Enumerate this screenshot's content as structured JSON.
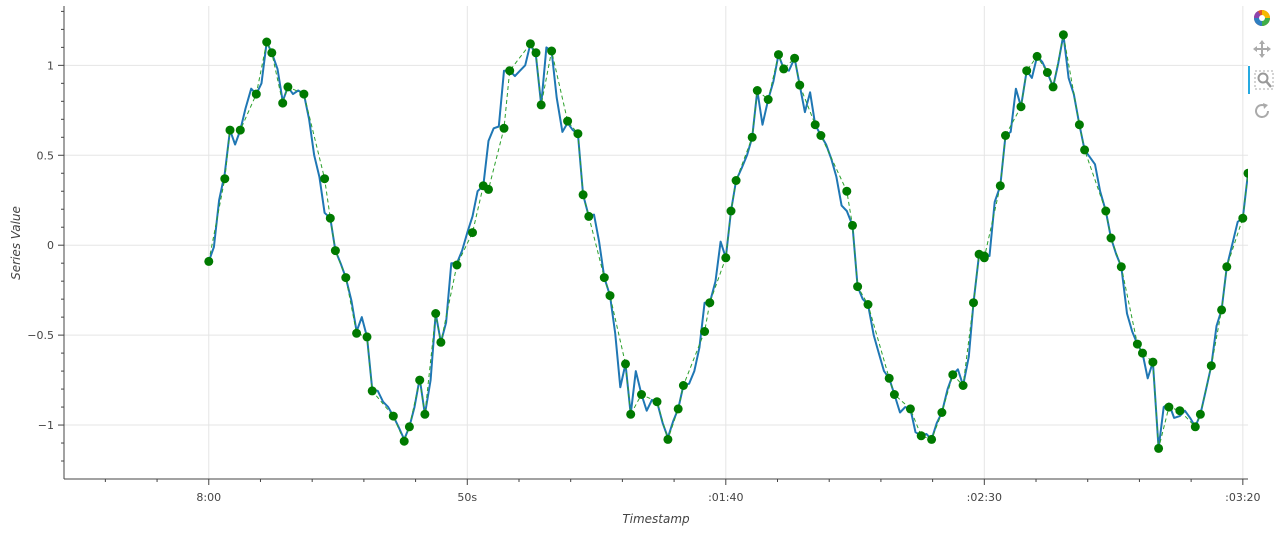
{
  "chart_data": {
    "type": "line",
    "xlabel": "Timestamp",
    "ylabel": "Series Value",
    "x_tick_labels": [
      "8:00",
      "50s",
      ":01:40",
      ":02:30",
      ":03:20"
    ],
    "x_ticks_seconds": [
      0,
      50,
      100,
      150,
      200
    ],
    "x_range_seconds": [
      -28,
      201
    ],
    "y_ticks": [
      -1,
      -0.5,
      0,
      0.5,
      1
    ],
    "y_tick_labels": [
      "−1",
      "−0.5",
      "0",
      "0.5",
      "1"
    ],
    "y_range": [
      -1.3,
      1.33
    ],
    "grid": true,
    "legend": "none",
    "colors": {
      "noisy_line": "#1f77b4",
      "sampled_line": "#2ca02c",
      "markers": "#007a00"
    },
    "sampled_points": [
      [
        0.0,
        -0.09
      ],
      [
        3.1,
        0.37
      ],
      [
        4.1,
        0.64
      ],
      [
        6.1,
        0.64
      ],
      [
        9.2,
        0.84
      ],
      [
        11.2,
        1.13
      ],
      [
        12.2,
        1.07
      ],
      [
        14.3,
        0.79
      ],
      [
        15.3,
        0.88
      ],
      [
        18.4,
        0.84
      ],
      [
        22.4,
        0.37
      ],
      [
        23.5,
        0.15
      ],
      [
        24.5,
        -0.03
      ],
      [
        26.5,
        -0.18
      ],
      [
        28.6,
        -0.49
      ],
      [
        30.6,
        -0.51
      ],
      [
        31.6,
        -0.81
      ],
      [
        35.7,
        -0.95
      ],
      [
        37.8,
        -1.09
      ],
      [
        38.8,
        -1.01
      ],
      [
        40.8,
        -0.75
      ],
      [
        41.8,
        -0.94
      ],
      [
        43.9,
        -0.38
      ],
      [
        44.9,
        -0.54
      ],
      [
        48.0,
        -0.11
      ],
      [
        51.0,
        0.07
      ],
      [
        53.1,
        0.33
      ],
      [
        54.1,
        0.31
      ],
      [
        57.1,
        0.65
      ],
      [
        58.2,
        0.97
      ],
      [
        62.2,
        1.12
      ],
      [
        63.3,
        1.07
      ],
      [
        64.3,
        0.78
      ],
      [
        66.3,
        1.08
      ],
      [
        69.4,
        0.69
      ],
      [
        71.4,
        0.62
      ],
      [
        72.4,
        0.28
      ],
      [
        73.5,
        0.16
      ],
      [
        76.5,
        -0.18
      ],
      [
        77.6,
        -0.28
      ],
      [
        80.6,
        -0.66
      ],
      [
        81.6,
        -0.94
      ],
      [
        83.7,
        -0.83
      ],
      [
        86.7,
        -0.87
      ],
      [
        88.8,
        -1.08
      ],
      [
        90.8,
        -0.91
      ],
      [
        91.8,
        -0.78
      ],
      [
        95.9,
        -0.48
      ],
      [
        96.9,
        -0.32
      ],
      [
        100.0,
        -0.07
      ],
      [
        101.0,
        0.19
      ],
      [
        102.0,
        0.36
      ],
      [
        105.1,
        0.6
      ],
      [
        106.1,
        0.86
      ],
      [
        108.2,
        0.81
      ],
      [
        110.2,
        1.06
      ],
      [
        111.2,
        0.98
      ],
      [
        113.3,
        1.04
      ],
      [
        114.3,
        0.89
      ],
      [
        117.3,
        0.67
      ],
      [
        118.4,
        0.61
      ],
      [
        123.4,
        0.3
      ],
      [
        124.5,
        0.11
      ],
      [
        125.5,
        -0.23
      ],
      [
        127.5,
        -0.33
      ],
      [
        131.6,
        -0.74
      ],
      [
        132.6,
        -0.83
      ],
      [
        135.7,
        -0.91
      ],
      [
        137.8,
        -1.06
      ],
      [
        139.8,
        -1.08
      ],
      [
        141.8,
        -0.93
      ],
      [
        143.9,
        -0.72
      ],
      [
        145.9,
        -0.78
      ],
      [
        147.9,
        -0.32
      ],
      [
        149.0,
        -0.05
      ],
      [
        150.0,
        -0.06
      ],
      [
        150.0,
        -0.07
      ],
      [
        153.1,
        0.33
      ],
      [
        154.1,
        0.61
      ],
      [
        157.1,
        0.77
      ],
      [
        158.2,
        0.97
      ],
      [
        160.2,
        1.05
      ],
      [
        162.2,
        0.96
      ],
      [
        163.3,
        0.88
      ],
      [
        165.3,
        1.17
      ],
      [
        168.4,
        0.67
      ],
      [
        169.4,
        0.53
      ],
      [
        173.5,
        0.19
      ],
      [
        174.5,
        0.04
      ],
      [
        176.5,
        -0.12
      ],
      [
        179.6,
        -0.55
      ],
      [
        180.6,
        -0.6
      ],
      [
        182.6,
        -0.65
      ],
      [
        183.7,
        -1.13
      ],
      [
        185.7,
        -0.9
      ],
      [
        187.8,
        -0.92
      ],
      [
        190.8,
        -1.01
      ],
      [
        191.8,
        -0.94
      ],
      [
        193.9,
        -0.67
      ],
      [
        195.9,
        -0.36
      ],
      [
        196.9,
        -0.12
      ],
      [
        200.0,
        0.15
      ],
      [
        201.0,
        0.4
      ]
    ],
    "noisy_series_points": [
      [
        0.0,
        -0.09
      ],
      [
        1.0,
        -0.01
      ],
      [
        2.0,
        0.25
      ],
      [
        3.1,
        0.4
      ],
      [
        4.1,
        0.64
      ],
      [
        5.1,
        0.56
      ],
      [
        6.1,
        0.64
      ],
      [
        7.1,
        0.76
      ],
      [
        8.2,
        0.87
      ],
      [
        9.2,
        0.84
      ],
      [
        10.2,
        0.9
      ],
      [
        11.2,
        1.13
      ],
      [
        12.2,
        1.07
      ],
      [
        13.3,
        0.98
      ],
      [
        14.3,
        0.8
      ],
      [
        15.3,
        0.88
      ],
      [
        16.3,
        0.84
      ],
      [
        17.3,
        0.86
      ],
      [
        18.4,
        0.84
      ],
      [
        19.4,
        0.7
      ],
      [
        20.4,
        0.5
      ],
      [
        21.4,
        0.38
      ],
      [
        22.4,
        0.18
      ],
      [
        23.5,
        0.15
      ],
      [
        24.5,
        -0.03
      ],
      [
        25.5,
        -0.1
      ],
      [
        26.5,
        -0.18
      ],
      [
        27.6,
        -0.31
      ],
      [
        28.6,
        -0.48
      ],
      [
        29.6,
        -0.4
      ],
      [
        30.6,
        -0.51
      ],
      [
        31.6,
        -0.8
      ],
      [
        32.7,
        -0.81
      ],
      [
        33.7,
        -0.87
      ],
      [
        34.7,
        -0.9
      ],
      [
        35.7,
        -0.95
      ],
      [
        36.7,
        -1.01
      ],
      [
        37.8,
        -1.08
      ],
      [
        38.8,
        -1.01
      ],
      [
        39.8,
        -0.9
      ],
      [
        40.8,
        -0.74
      ],
      [
        41.8,
        -0.94
      ],
      [
        42.9,
        -0.75
      ],
      [
        43.9,
        -0.38
      ],
      [
        44.9,
        -0.54
      ],
      [
        45.9,
        -0.43
      ],
      [
        46.9,
        -0.1
      ],
      [
        48.0,
        -0.1
      ],
      [
        49.0,
        -0.03
      ],
      [
        50.0,
        0.07
      ],
      [
        51.0,
        0.16
      ],
      [
        52.0,
        0.3
      ],
      [
        53.1,
        0.33
      ],
      [
        54.1,
        0.58
      ],
      [
        55.1,
        0.65
      ],
      [
        56.1,
        0.66
      ],
      [
        57.1,
        0.97
      ],
      [
        58.2,
        0.97
      ],
      [
        59.2,
        0.94
      ],
      [
        60.2,
        0.97
      ],
      [
        61.2,
        1.0
      ],
      [
        62.2,
        1.12
      ],
      [
        63.3,
        1.05
      ],
      [
        64.3,
        0.78
      ],
      [
        65.3,
        1.1
      ],
      [
        66.3,
        1.08
      ],
      [
        67.3,
        0.82
      ],
      [
        68.4,
        0.63
      ],
      [
        69.4,
        0.68
      ],
      [
        70.4,
        0.64
      ],
      [
        71.4,
        0.62
      ],
      [
        72.4,
        0.28
      ],
      [
        73.5,
        0.16
      ],
      [
        74.5,
        0.17
      ],
      [
        75.5,
        0.02
      ],
      [
        76.5,
        -0.18
      ],
      [
        77.6,
        -0.28
      ],
      [
        78.6,
        -0.49
      ],
      [
        79.6,
        -0.79
      ],
      [
        80.6,
        -0.66
      ],
      [
        81.6,
        -0.94
      ],
      [
        82.6,
        -0.7
      ],
      [
        83.7,
        -0.83
      ],
      [
        84.7,
        -0.92
      ],
      [
        85.7,
        -0.86
      ],
      [
        86.7,
        -0.87
      ],
      [
        87.8,
        -0.99
      ],
      [
        88.8,
        -1.07
      ],
      [
        89.8,
        -0.98
      ],
      [
        90.8,
        -0.91
      ],
      [
        91.8,
        -0.78
      ],
      [
        92.9,
        -0.77
      ],
      [
        93.9,
        -0.7
      ],
      [
        94.9,
        -0.57
      ],
      [
        95.9,
        -0.32
      ],
      [
        96.9,
        -0.32
      ],
      [
        98.0,
        -0.2
      ],
      [
        99.0,
        0.02
      ],
      [
        100.0,
        -0.07
      ],
      [
        101.0,
        0.19
      ],
      [
        102.0,
        0.36
      ],
      [
        103.1,
        0.43
      ],
      [
        104.1,
        0.5
      ],
      [
        105.1,
        0.6
      ],
      [
        106.1,
        0.86
      ],
      [
        107.1,
        0.67
      ],
      [
        108.2,
        0.81
      ],
      [
        109.2,
        0.91
      ],
      [
        110.2,
        1.06
      ],
      [
        111.2,
        0.98
      ],
      [
        112.2,
        0.97
      ],
      [
        113.3,
        1.04
      ],
      [
        114.3,
        0.89
      ],
      [
        115.3,
        0.74
      ],
      [
        116.3,
        0.85
      ],
      [
        117.3,
        0.67
      ],
      [
        118.4,
        0.61
      ],
      [
        119.4,
        0.56
      ],
      [
        120.4,
        0.48
      ],
      [
        121.4,
        0.38
      ],
      [
        122.4,
        0.22
      ],
      [
        123.4,
        0.19
      ],
      [
        124.5,
        0.11
      ],
      [
        125.5,
        -0.23
      ],
      [
        126.5,
        -0.3
      ],
      [
        127.5,
        -0.33
      ],
      [
        128.6,
        -0.5
      ],
      [
        129.6,
        -0.6
      ],
      [
        130.6,
        -0.7
      ],
      [
        131.6,
        -0.74
      ],
      [
        132.6,
        -0.83
      ],
      [
        133.7,
        -0.93
      ],
      [
        134.7,
        -0.9
      ],
      [
        135.7,
        -0.91
      ],
      [
        136.7,
        -1.04
      ],
      [
        137.8,
        -1.06
      ],
      [
        138.8,
        -1.05
      ],
      [
        139.8,
        -1.08
      ],
      [
        140.8,
        -0.99
      ],
      [
        141.8,
        -0.93
      ],
      [
        142.9,
        -0.8
      ],
      [
        143.9,
        -0.72
      ],
      [
        144.9,
        -0.69
      ],
      [
        145.9,
        -0.78
      ],
      [
        147.0,
        -0.62
      ],
      [
        147.9,
        -0.32
      ],
      [
        149.0,
        -0.05
      ],
      [
        150.0,
        -0.06
      ],
      [
        151.0,
        -0.06
      ],
      [
        152.0,
        0.24
      ],
      [
        153.1,
        0.33
      ],
      [
        154.1,
        0.61
      ],
      [
        155.1,
        0.63
      ],
      [
        156.1,
        0.87
      ],
      [
        157.1,
        0.77
      ],
      [
        158.2,
        0.97
      ],
      [
        159.2,
        0.93
      ],
      [
        160.2,
        1.05
      ],
      [
        161.2,
        1.02
      ],
      [
        162.2,
        0.96
      ],
      [
        163.3,
        0.88
      ],
      [
        164.3,
        1.01
      ],
      [
        165.3,
        1.17
      ],
      [
        166.3,
        0.93
      ],
      [
        167.3,
        0.84
      ],
      [
        168.4,
        0.67
      ],
      [
        169.4,
        0.53
      ],
      [
        170.4,
        0.49
      ],
      [
        171.4,
        0.45
      ],
      [
        172.4,
        0.3
      ],
      [
        173.5,
        0.19
      ],
      [
        174.5,
        0.04
      ],
      [
        175.5,
        -0.05
      ],
      [
        176.5,
        -0.12
      ],
      [
        177.6,
        -0.38
      ],
      [
        178.6,
        -0.48
      ],
      [
        179.6,
        -0.55
      ],
      [
        180.6,
        -0.6
      ],
      [
        181.6,
        -0.74
      ],
      [
        182.6,
        -0.65
      ],
      [
        183.7,
        -1.13
      ],
      [
        184.7,
        -0.9
      ],
      [
        185.7,
        -0.88
      ],
      [
        186.7,
        -0.96
      ],
      [
        187.8,
        -0.95
      ],
      [
        188.8,
        -0.92
      ],
      [
        189.8,
        -0.96
      ],
      [
        190.8,
        -1.01
      ],
      [
        191.8,
        -0.94
      ],
      [
        192.9,
        -0.8
      ],
      [
        193.9,
        -0.67
      ],
      [
        194.9,
        -0.45
      ],
      [
        195.9,
        -0.36
      ],
      [
        196.9,
        -0.12
      ],
      [
        198.0,
        0.01
      ],
      [
        199.0,
        0.13
      ],
      [
        200.0,
        0.15
      ],
      [
        201.0,
        0.4
      ]
    ]
  },
  "toolbar": {
    "tools": [
      {
        "name": "bokeh-logo-icon"
      },
      {
        "name": "pan-tool-icon"
      },
      {
        "name": "box-zoom-tool-icon"
      },
      {
        "name": "reset-tool-icon"
      }
    ]
  }
}
